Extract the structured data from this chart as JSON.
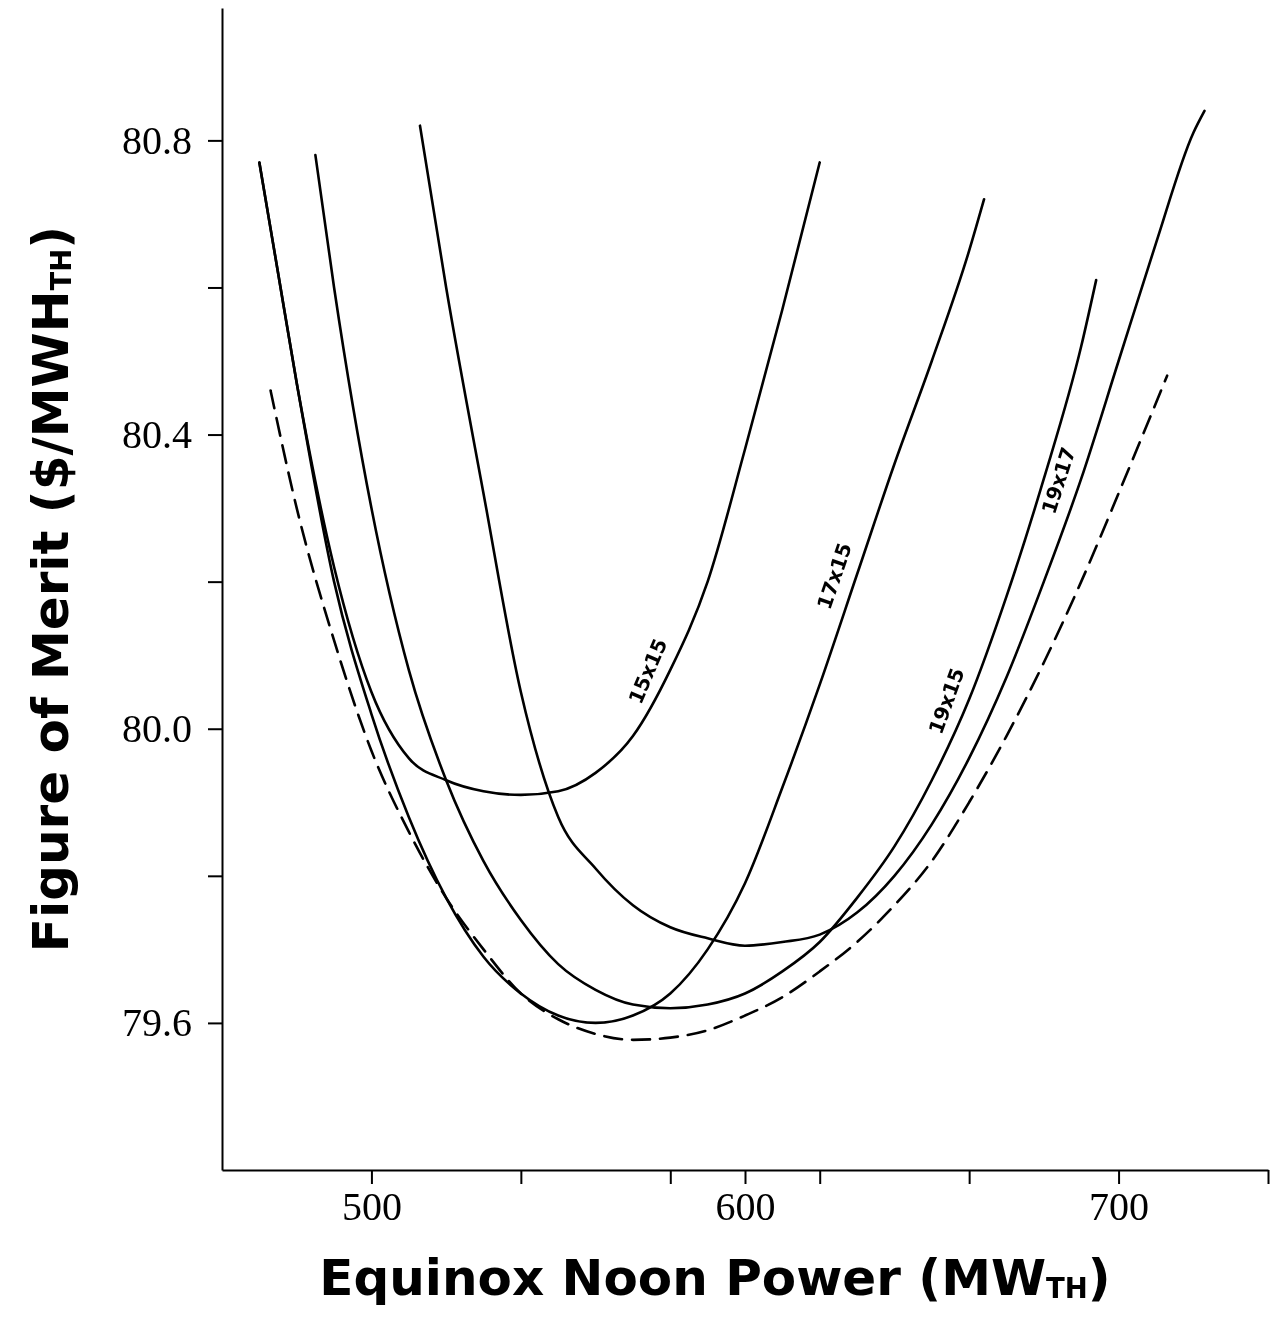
{
  "chart_data": {
    "type": "line",
    "xlabel": "Equinox Noon Power (MW$_{TH}$)",
    "ylabel": "Figure of Merit ($/MWH$_{TH}$)",
    "xlim": [
      460,
      740
    ],
    "ylim": [
      79.4,
      80.98
    ],
    "xticks": [
      500,
      {
        "value": 540,
        "label": null
      },
      {
        "value": 580,
        "label": null
      },
      600,
      {
        "value": 620,
        "label": null
      },
      {
        "value": 660,
        "label": null
      },
      700,
      {
        "value": 740,
        "label": null
      }
    ],
    "yticks": [
      {
        "value": 79.6,
        "label": "79.6"
      },
      {
        "value": 79.8,
        "label": null
      },
      {
        "value": 80.0,
        "label": "80.0"
      },
      {
        "value": 80.2,
        "label": null
      },
      {
        "value": 80.4,
        "label": "80.4"
      },
      {
        "value": 80.6,
        "label": null
      },
      {
        "value": 80.8,
        "label": "80.8"
      }
    ],
    "grid": false,
    "marker": "none",
    "series": [
      {
        "name": "15x15",
        "color": "#000000",
        "line_style": "solid",
        "x": [
          470,
          475,
          480,
          490,
          500,
          510,
          520,
          530,
          540,
          550,
          560,
          570,
          580,
          590,
          600,
          610,
          620
        ],
        "values": [
          80.77,
          80.62,
          80.47,
          80.22,
          80.05,
          79.96,
          79.93,
          79.915,
          79.91,
          79.915,
          79.94,
          79.99,
          80.08,
          80.2,
          80.38,
          80.57,
          80.77
        ]
      },
      {
        "name": "17x15",
        "color": "#000000",
        "line_style": "solid",
        "x": [
          470,
          480,
          490,
          500,
          510,
          520,
          530,
          540,
          550,
          560,
          570,
          580,
          590,
          600,
          610,
          620,
          630,
          640,
          650,
          660,
          664
        ],
        "values": [
          80.77,
          80.47,
          80.2,
          80.02,
          79.88,
          79.77,
          79.69,
          79.64,
          79.61,
          79.6,
          79.61,
          79.64,
          79.7,
          79.79,
          79.92,
          80.06,
          80.21,
          80.36,
          80.5,
          80.65,
          80.72
        ]
      },
      {
        "name": "19x15",
        "color": "#000000",
        "line_style": "solid",
        "x": [
          485,
          490,
          500,
          510,
          520,
          530,
          540,
          550,
          560,
          570,
          580,
          590,
          600,
          610,
          620,
          630,
          640,
          650,
          660,
          670,
          680,
          690,
          694
        ],
        "values": [
          80.78,
          80.6,
          80.3,
          80.08,
          79.93,
          79.82,
          79.74,
          79.68,
          79.645,
          79.625,
          79.62,
          79.625,
          79.64,
          79.67,
          79.71,
          79.77,
          79.84,
          79.93,
          80.04,
          80.18,
          80.34,
          80.52,
          80.61
        ]
      },
      {
        "name": "19x17",
        "color": "#000000",
        "line_style": "solid",
        "x": [
          513,
          520,
          530,
          540,
          550,
          560,
          570,
          580,
          590,
          600,
          610,
          620,
          630,
          640,
          650,
          660,
          670,
          680,
          690,
          700,
          710,
          720,
          723
        ],
        "values": [
          80.82,
          80.6,
          80.32,
          80.05,
          79.88,
          79.81,
          79.76,
          79.73,
          79.715,
          79.705,
          79.71,
          79.72,
          79.75,
          79.8,
          79.87,
          79.96,
          80.07,
          80.2,
          80.34,
          80.5,
          80.66,
          80.81,
          80.84
        ]
      },
      {
        "color": "#000000",
        "line_style": "dashed",
        "x": [
          473,
          480,
          490,
          500,
          510,
          520,
          530,
          540,
          550,
          560,
          570,
          580,
          590,
          600,
          610,
          620,
          630,
          640,
          650,
          660,
          670,
          680,
          690,
          700,
          713
        ],
        "values": [
          80.46,
          80.3,
          80.12,
          79.97,
          79.86,
          79.77,
          79.7,
          79.64,
          79.605,
          79.585,
          79.577,
          79.58,
          79.59,
          79.61,
          79.635,
          79.67,
          79.71,
          79.76,
          79.82,
          79.9,
          79.99,
          80.09,
          80.2,
          80.32,
          80.48
        ]
      }
    ]
  }
}
